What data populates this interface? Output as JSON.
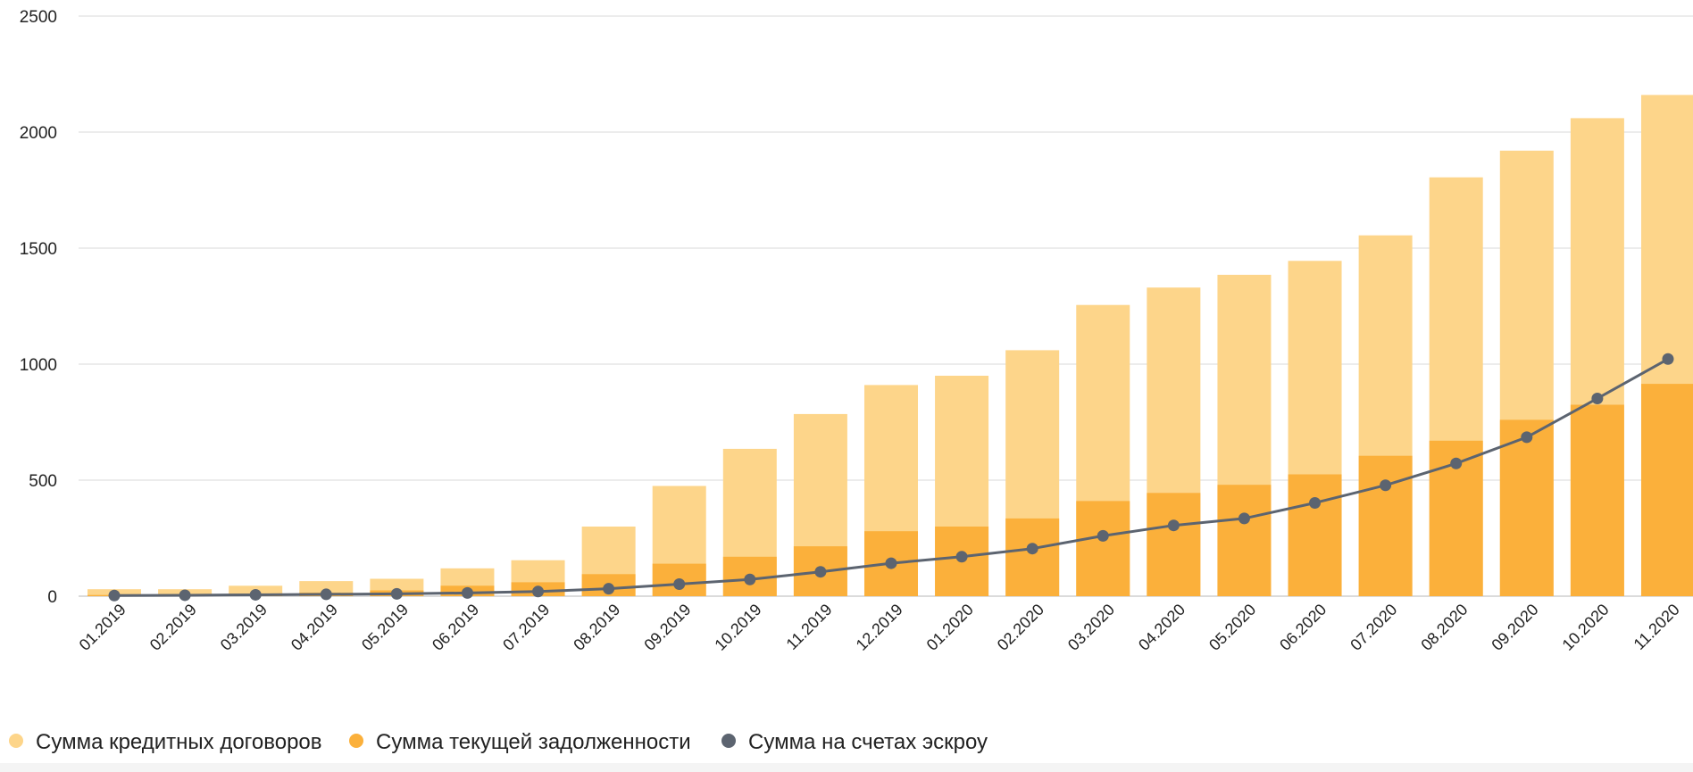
{
  "chart_data": {
    "type": "bar",
    "stacked_overlay": true,
    "categories": [
      "01.2019",
      "02.2019",
      "03.2019",
      "04.2019",
      "05.2019",
      "06.2019",
      "07.2019",
      "08.2019",
      "09.2019",
      "10.2019",
      "11.2019",
      "12.2019",
      "01.2020",
      "02.2020",
      "03.2020",
      "04.2020",
      "05.2020",
      "06.2020",
      "07.2020",
      "08.2020",
      "09.2020",
      "10.2020",
      "11.2020"
    ],
    "yticks": [
      0,
      500,
      1000,
      1500,
      2000,
      2500
    ],
    "ylim": [
      0,
      2500
    ],
    "grid": true,
    "legend_position": "bottom-left",
    "series": [
      {
        "name": "Сумма кредитных договоров",
        "kind": "bar",
        "color": "#fdd58a",
        "values": [
          30,
          30,
          45,
          65,
          75,
          120,
          155,
          300,
          475,
          635,
          785,
          910,
          950,
          1060,
          1255,
          1330,
          1385,
          1445,
          1555,
          1805,
          1920,
          2060,
          2160
        ]
      },
      {
        "name": "Сумма текущей задолженности",
        "kind": "bar",
        "color": "#fbb03b",
        "values": [
          5,
          7,
          10,
          15,
          25,
          45,
          60,
          95,
          140,
          170,
          215,
          280,
          300,
          335,
          410,
          445,
          480,
          525,
          605,
          670,
          760,
          825,
          915
        ]
      },
      {
        "name": "Сумма на счетах эскроу",
        "kind": "line",
        "color": "#5c6470",
        "values": [
          3,
          4,
          6,
          8,
          10,
          14,
          20,
          32,
          52,
          72,
          105,
          142,
          170,
          205,
          260,
          305,
          335,
          402,
          478,
          572,
          685,
          852,
          1022
        ]
      }
    ]
  }
}
